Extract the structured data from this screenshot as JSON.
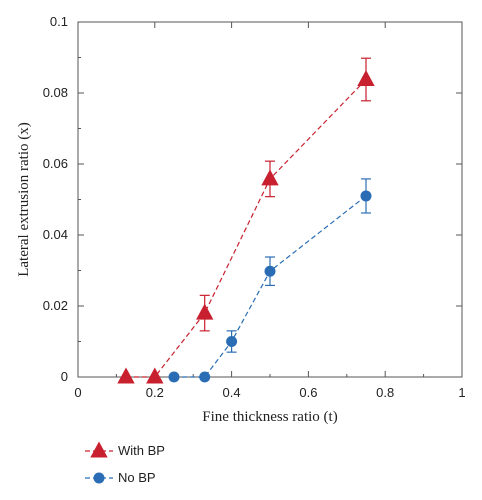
{
  "chart_data": {
    "type": "scatter",
    "xlabel": "Fine thickness ratio (t)",
    "ylabel": "Lateral extrusion ratio (x)",
    "xlim": [
      0,
      1
    ],
    "ylim": [
      0,
      0.1
    ],
    "x_ticks": [
      0,
      0.2,
      0.4,
      0.6,
      0.8,
      1
    ],
    "x_tick_labels": [
      "0",
      "0.2",
      "0.4",
      "0.6",
      "0.8",
      "1"
    ],
    "y_ticks": [
      0,
      0.02,
      0.04,
      0.06,
      0.08,
      0.1
    ],
    "y_tick_labels": [
      "0",
      "0.02",
      "0.04",
      "0.06",
      "0.08",
      "0.1"
    ],
    "grid": false,
    "legend_position": "below",
    "series": [
      {
        "name": "With BP",
        "color": "#c8202e",
        "marker": "triangle",
        "line_style": "dashed",
        "x": [
          0.125,
          0.2,
          0.33,
          0.5,
          0.75
        ],
        "y": [
          0,
          0,
          0.018,
          0.0558,
          0.0838
        ],
        "err": [
          0,
          0,
          0.005,
          0.005,
          0.006
        ]
      },
      {
        "name": "No BP",
        "color": "#2a6db5",
        "marker": "circle",
        "line_style": "dashed",
        "x": [
          0.25,
          0.33,
          0.4,
          0.5,
          0.75
        ],
        "y": [
          0,
          0,
          0.01,
          0.0298,
          0.051
        ],
        "err": [
          0,
          0,
          0.003,
          0.004,
          0.0048
        ]
      }
    ]
  }
}
